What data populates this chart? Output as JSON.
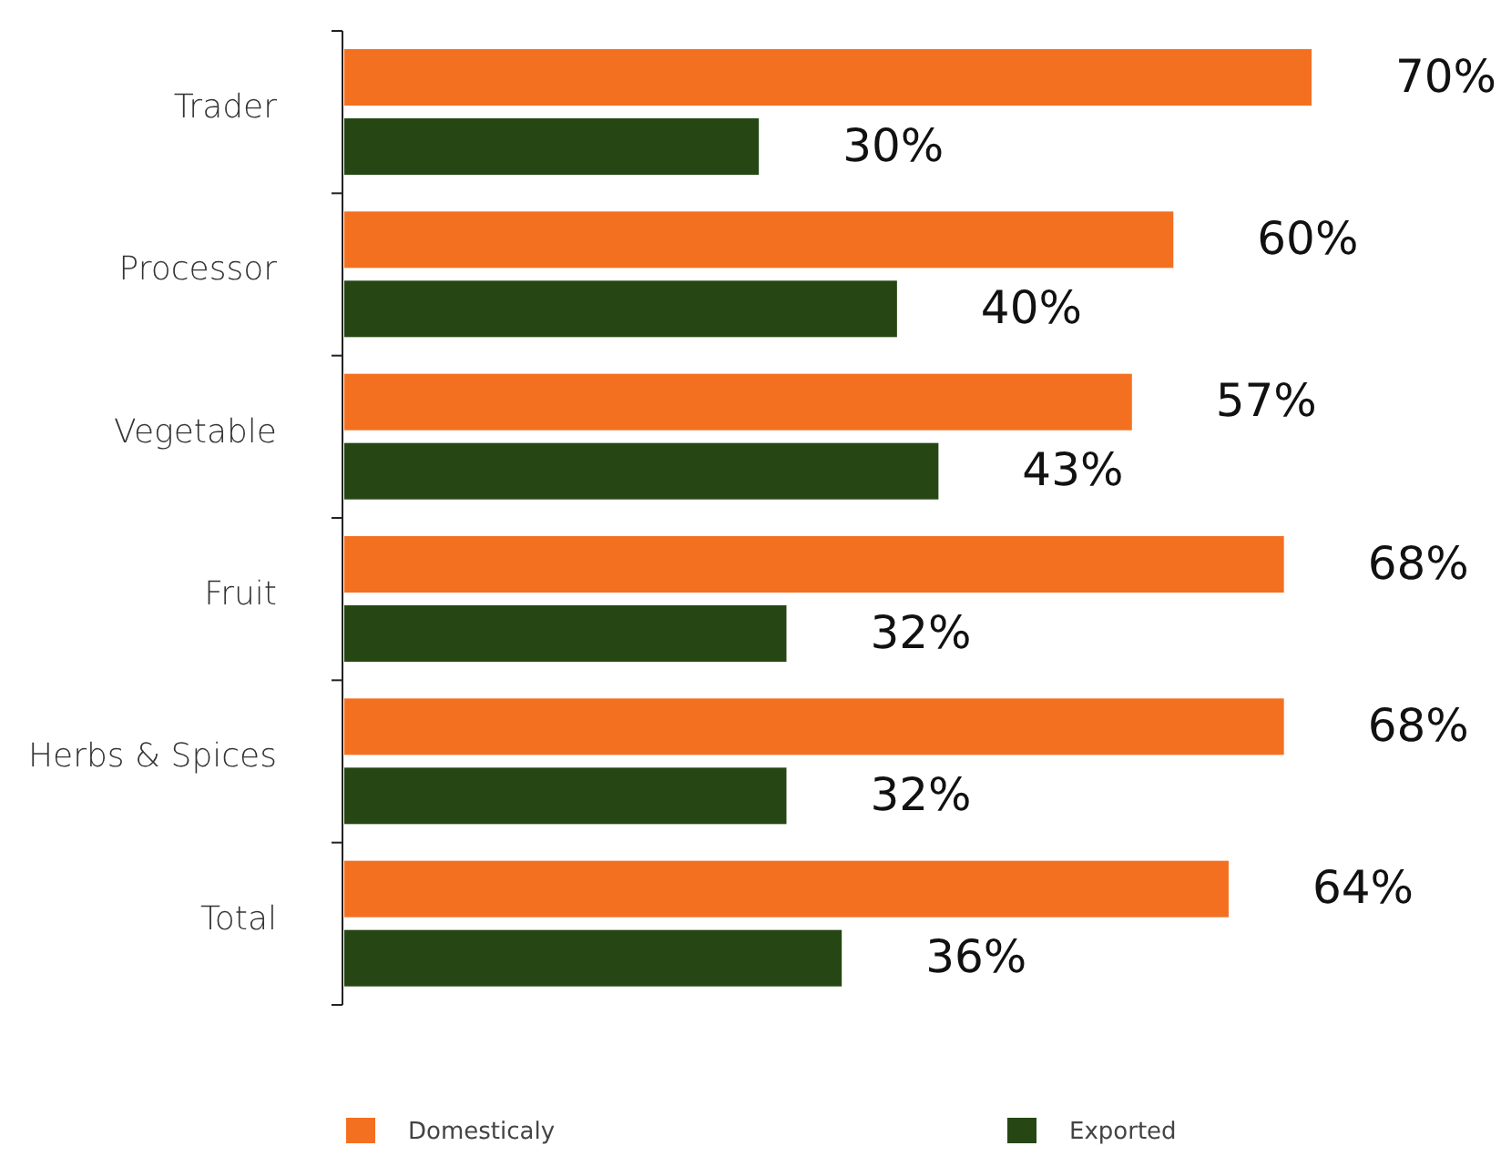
{
  "chart_data": {
    "type": "bar",
    "orientation": "horizontal",
    "categories": [
      "Trader",
      "Processor",
      "Vegetable",
      "Fruit",
      "Herbs & Spices",
      "Total"
    ],
    "series": [
      {
        "name": "Domesticaly",
        "color": "#f37021",
        "values": [
          70,
          60,
          57,
          68,
          68,
          64
        ],
        "value_labels": [
          "70%",
          "60%",
          "57%",
          "68%",
          "68%",
          "64%"
        ]
      },
      {
        "name": "Exported",
        "color": "#264713",
        "values": [
          30,
          40,
          43,
          32,
          32,
          36
        ],
        "value_labels": [
          "30%",
          "40%",
          "43%",
          "32%",
          "32%",
          "36%"
        ]
      }
    ],
    "legend": "bottom"
  }
}
